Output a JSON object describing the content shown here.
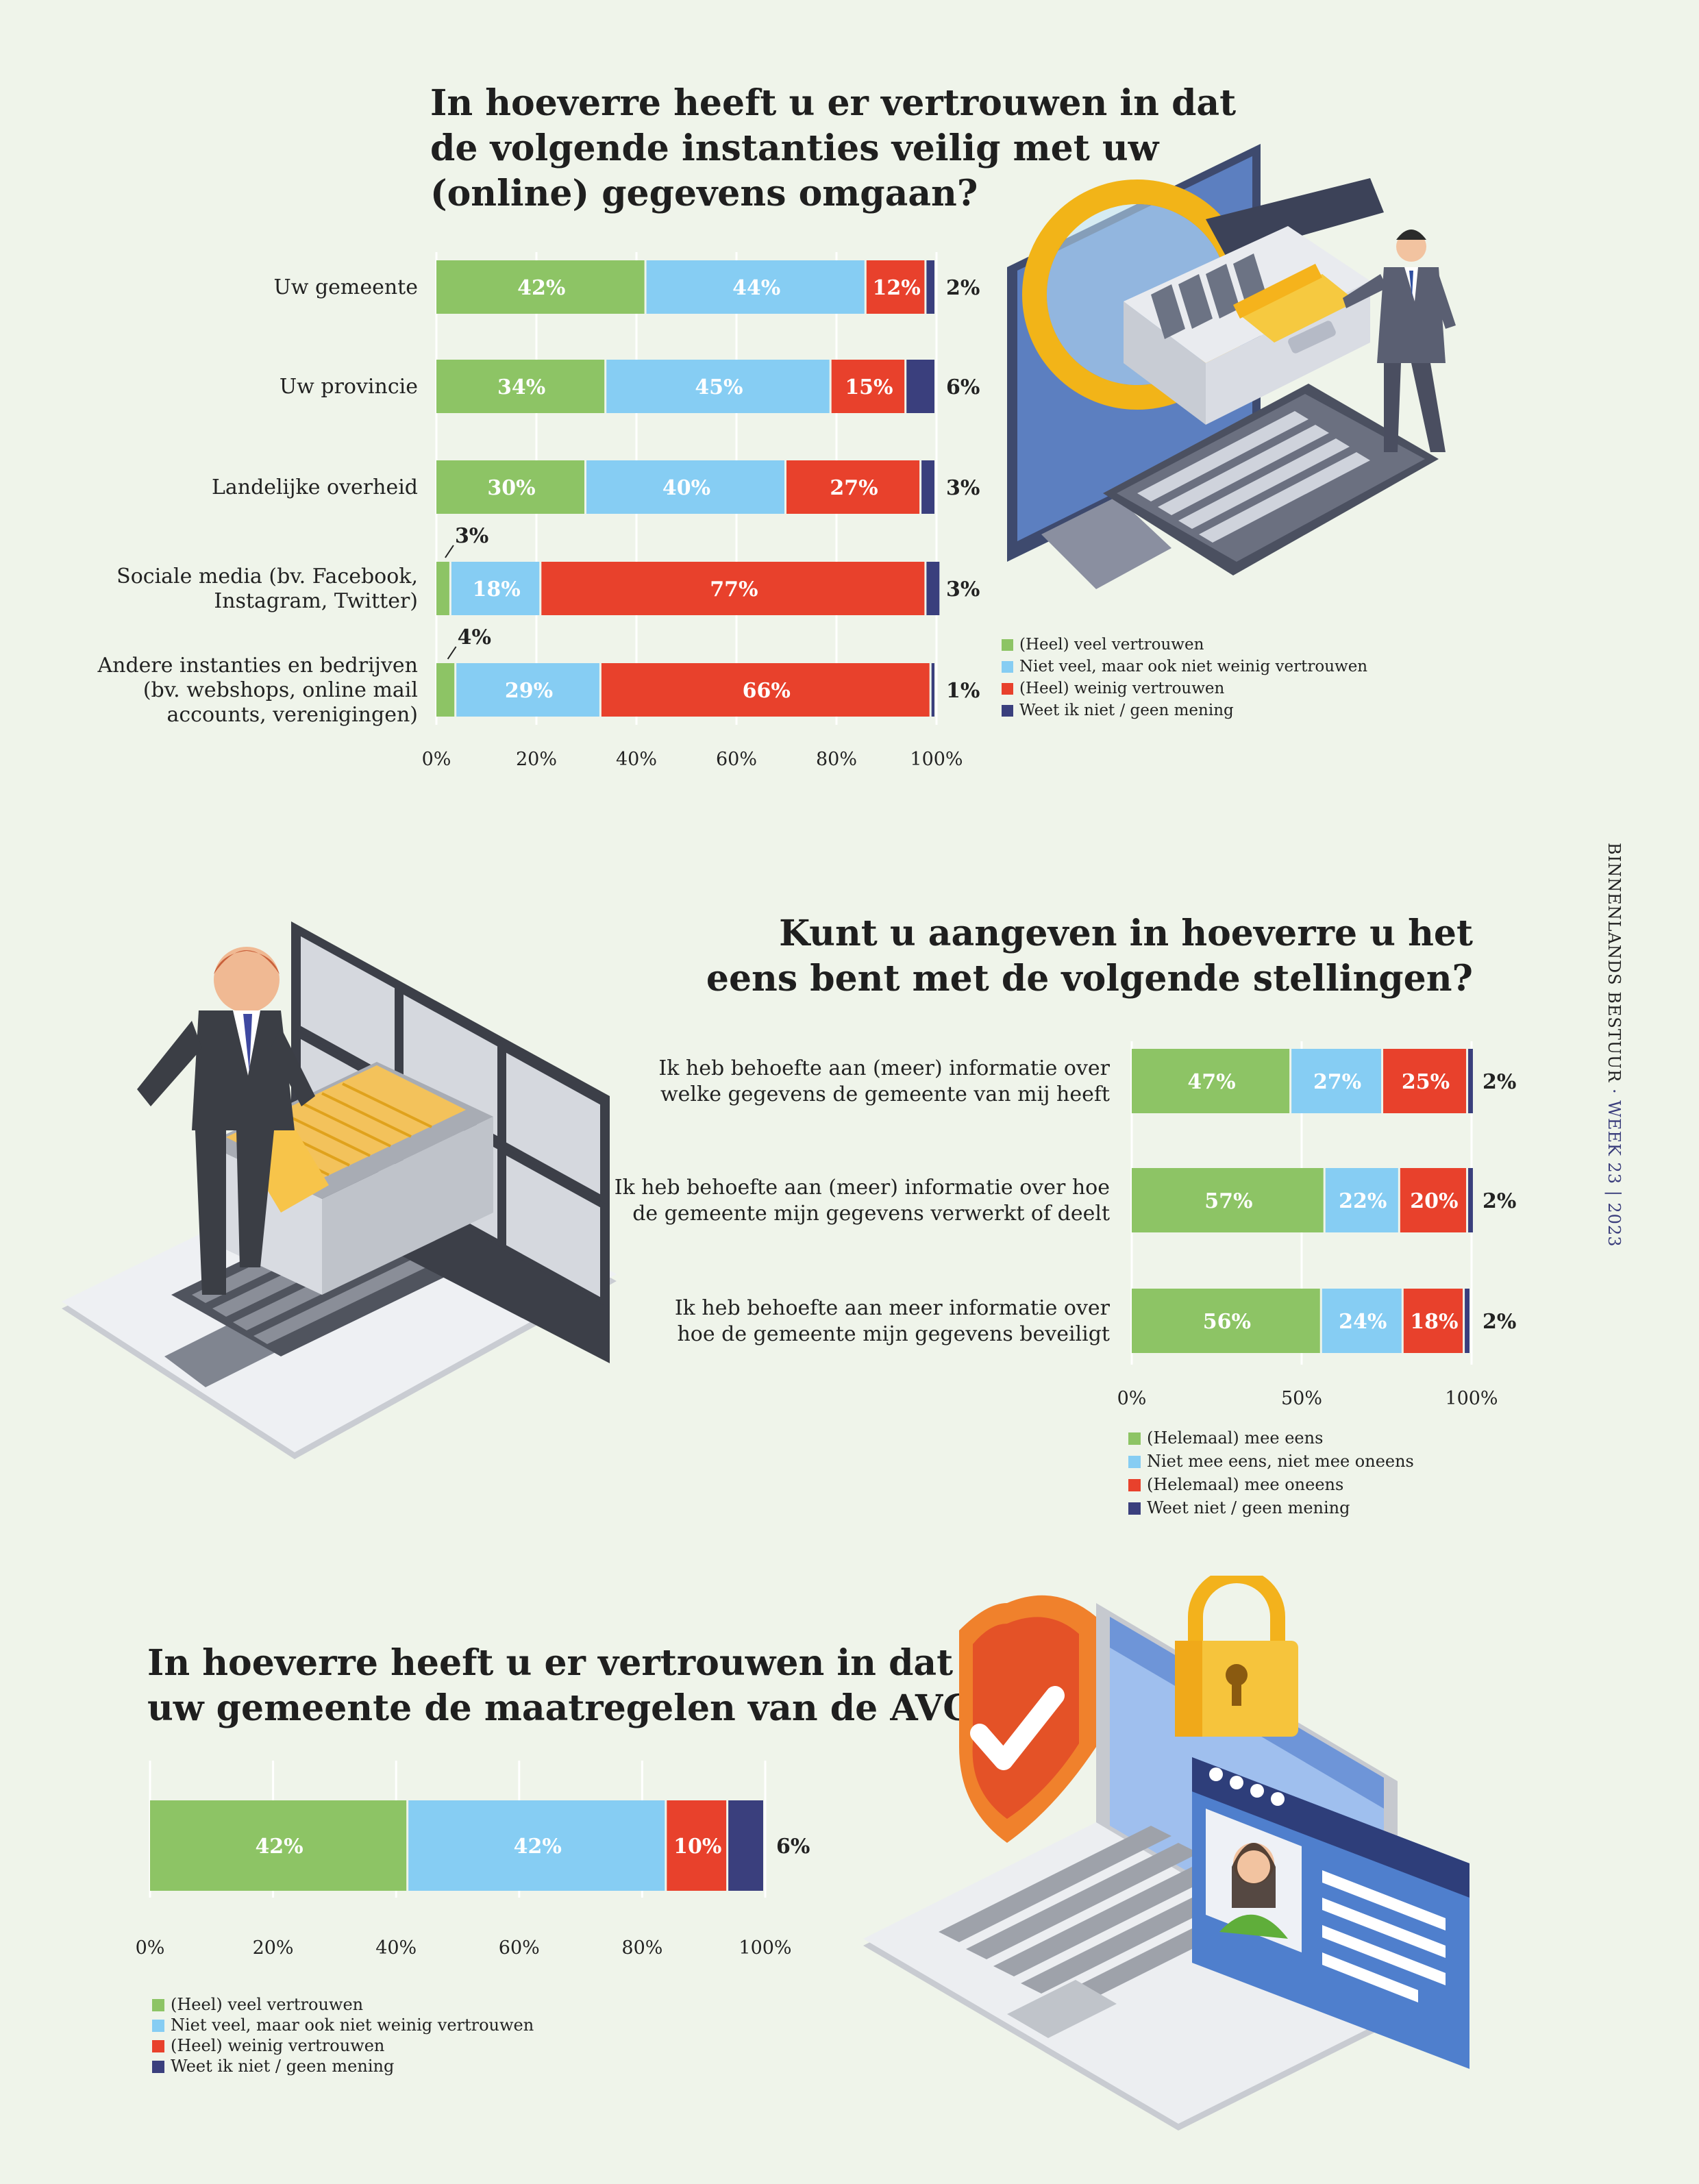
{
  "colors": {
    "green": "#8dc465",
    "lightblue": "#86cdf3",
    "red": "#e8412c",
    "navy": "#3a3f7d",
    "background": "#eff4ea",
    "text": "#222222"
  },
  "side_label": {
    "publication": "BINNENLANDS BESTUUR",
    "week": "· WEEK 23 | 2023"
  },
  "chart_data": [
    {
      "type": "bar",
      "orientation": "horizontal",
      "stacked": true,
      "title_lines": [
        "In hoeverre heeft u er vertrouwen in dat",
        "de volgende instanties veilig met uw",
        "(online) gegevens omgaan?"
      ],
      "categories": [
        [
          "Uw gemeente"
        ],
        [
          "Uw provincie"
        ],
        [
          "Landelijke overheid"
        ],
        [
          "Sociale media (bv. Facebook,",
          "Instagram, Twitter)"
        ],
        [
          "Andere instanties en bedrijven",
          "(bv. webshops, online mail",
          "accounts, verenigingen)"
        ]
      ],
      "series": [
        {
          "name": "(Heel) veel vertrouwen",
          "color": "#8dc465",
          "values": [
            42,
            34,
            30,
            3,
            4
          ],
          "labels": [
            "42%",
            "34%",
            "30%",
            "3%",
            "4%"
          ]
        },
        {
          "name": "Niet veel, maar ook niet weinig vertrouwen",
          "color": "#86cdf3",
          "values": [
            44,
            45,
            40,
            18,
            29
          ],
          "labels": [
            "44%",
            "45%",
            "40%",
            "18%",
            "29%"
          ]
        },
        {
          "name": "(Heel) weinig vertrouwen",
          "color": "#e8412c",
          "values": [
            12,
            15,
            27,
            77,
            66
          ],
          "labels": [
            "12%",
            "15%",
            "27%",
            "77%",
            "66%"
          ]
        },
        {
          "name": "Weet ik niet / geen mening",
          "color": "#3a3f7d",
          "values": [
            2,
            6,
            3,
            3,
            1
          ],
          "labels": [
            "2%",
            "6%",
            "3%",
            "3%",
            "1%"
          ]
        }
      ],
      "xlim": [
        0,
        100
      ],
      "ticks": [
        "0%",
        "20%",
        "40%",
        "60%",
        "80%",
        "100%"
      ],
      "grid": true,
      "legend_position": "right"
    },
    {
      "type": "bar",
      "orientation": "horizontal",
      "stacked": true,
      "title_lines": [
        "Kunt u aangeven in hoeverre u het",
        "eens bent met de volgende stellingen?"
      ],
      "categories": [
        [
          "Ik heb behoefte aan (meer) informatie over",
          "welke gegevens de gemeente van mij heeft"
        ],
        [
          "Ik heb behoefte aan (meer) informatie over hoe",
          "de gemeente mijn gegevens verwerkt of deelt"
        ],
        [
          "Ik heb behoefte aan meer informatie over",
          "hoe de gemeente mijn gegevens beveiligt"
        ]
      ],
      "series": [
        {
          "name": "(Helemaal) mee eens",
          "color": "#8dc465",
          "values": [
            47,
            57,
            56
          ],
          "labels": [
            "47%",
            "57%",
            "56%"
          ]
        },
        {
          "name": "Niet mee eens, niet mee oneens",
          "color": "#86cdf3",
          "values": [
            27,
            22,
            24
          ],
          "labels": [
            "27%",
            "22%",
            "24%"
          ]
        },
        {
          "name": "(Helemaal) mee oneens",
          "color": "#e8412c",
          "values": [
            25,
            20,
            18
          ],
          "labels": [
            "25%",
            "20%",
            "18%"
          ]
        },
        {
          "name": "Weet niet / geen mening",
          "color": "#3a3f7d",
          "values": [
            2,
            2,
            2
          ],
          "labels": [
            "2%",
            "2%",
            "2%"
          ]
        }
      ],
      "xlim": [
        0,
        100
      ],
      "ticks": [
        "0%",
        "50%",
        "100%"
      ],
      "grid": true,
      "legend_position": "bottom-left"
    },
    {
      "type": "bar",
      "orientation": "horizontal",
      "stacked": true,
      "title_lines": [
        "In hoeverre heeft u er vertrouwen in dat",
        "uw gemeente de maatregelen van de AVG naleeft?"
      ],
      "categories": [
        [
          ""
        ]
      ],
      "series": [
        {
          "name": "(Heel) veel vertrouwen",
          "color": "#8dc465",
          "values": [
            42
          ],
          "labels": [
            "42%"
          ]
        },
        {
          "name": "Niet veel, maar ook niet weinig vertrouwen",
          "color": "#86cdf3",
          "values": [
            42
          ],
          "labels": [
            "42%"
          ]
        },
        {
          "name": "(Heel) weinig vertrouwen",
          "color": "#e8412c",
          "values": [
            10
          ],
          "labels": [
            "10%"
          ]
        },
        {
          "name": "Weet ik niet / geen mening",
          "color": "#3a3f7d",
          "values": [
            6
          ],
          "labels": [
            "6%"
          ]
        }
      ],
      "xlim": [
        0,
        100
      ],
      "ticks": [
        "0%",
        "20%",
        "40%",
        "60%",
        "80%",
        "100%"
      ],
      "grid": true,
      "legend_position": "bottom-left"
    }
  ]
}
